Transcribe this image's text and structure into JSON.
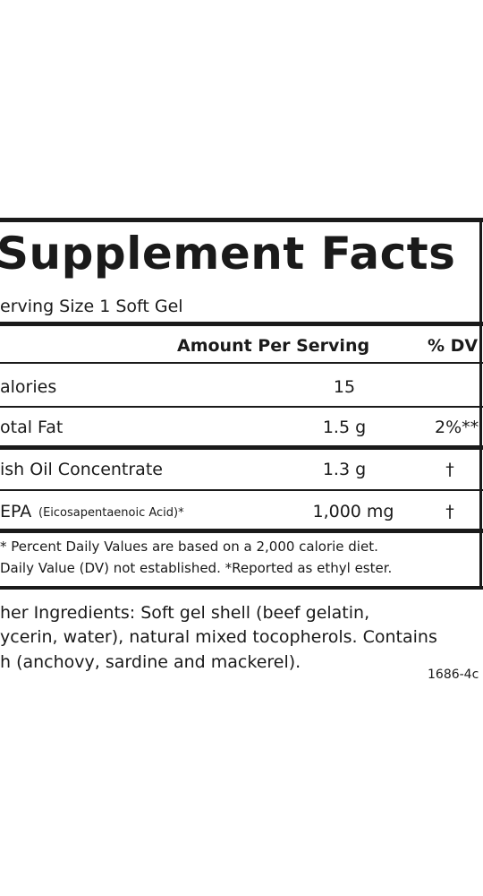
{
  "header": {
    "title": "Supplement Facts",
    "serving_size": "erving Size 1 Soft Gel"
  },
  "table": {
    "columns": [
      "Amount Per Serving",
      "% DV"
    ],
    "rows": [
      {
        "label": "alories",
        "amount": "15"
      },
      {
        "label": "otal Fat",
        "amount": "1.5 g",
        "dv": "2%**"
      },
      {
        "label": "ish Oil Concentrate",
        "amount": "1.3 g",
        "dv": "†"
      },
      {
        "label": "EPA",
        "sublabel": "(Eicosapentaenoic Acid)*",
        "amount": "1,000 mg",
        "dv": "†"
      }
    ]
  },
  "footnotes": [
    "* Percent Daily Values are based on a 2,000 calorie diet.",
    " Daily Value (DV) not established.  *Reported as ethyl ester."
  ],
  "other_ingredients": [
    "her Ingredients: Soft gel shell (beef gelatin,",
    "ycerin, water), natural mixed tocopherols. Contains",
    "h (anchovy, sardine and mackerel)."
  ],
  "code": "1686-4c"
}
